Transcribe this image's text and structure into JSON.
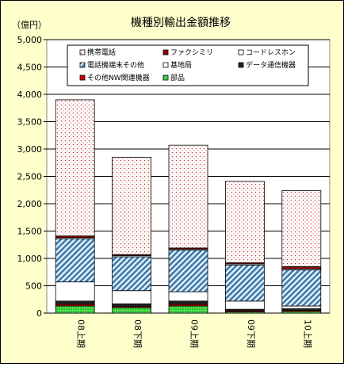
{
  "chart_data": {
    "type": "bar",
    "stacked": true,
    "title": "機種別輸出金額推移",
    "ylabel": "（億円）",
    "xlabel": "",
    "ylim": [
      0,
      5000
    ],
    "yticks": [
      0,
      500,
      1000,
      1500,
      2000,
      2500,
      3000,
      3500,
      4000,
      4500,
      5000
    ],
    "ytick_labels": [
      "0",
      "500",
      "1,000",
      "1,500",
      "2,000",
      "2,500",
      "3,000",
      "3,500",
      "4,000",
      "4,500",
      "5,000"
    ],
    "grid": true,
    "legend_position": "top",
    "categories": [
      "08上期",
      "08下期",
      "09上期",
      "09下期",
      "10上期"
    ],
    "series": [
      {
        "name": "部品",
        "color": "#33cc33",
        "pattern": "green-dots",
        "values": [
          130,
          100,
          130,
          20,
          30
        ]
      },
      {
        "name": "その他NW関連機器",
        "color": "#cc0000",
        "pattern": "solid",
        "values": [
          30,
          20,
          30,
          20,
          20
        ]
      },
      {
        "name": "データ通信機器",
        "color": "#222222",
        "pattern": "solid",
        "values": [
          60,
          50,
          60,
          30,
          30
        ]
      },
      {
        "name": "基地局",
        "color": "#ffffff",
        "pattern": "solid",
        "values": [
          350,
          240,
          170,
          150,
          50
        ]
      },
      {
        "name": "電話機端末その他",
        "color": "#4682b4",
        "pattern": "hatch",
        "values": [
          790,
          620,
          760,
          660,
          660
        ]
      },
      {
        "name": "コードレスホン",
        "color": "#ffffff",
        "pattern": "solid",
        "values": [
          20,
          20,
          20,
          20,
          20
        ]
      },
      {
        "name": "ファクシミリ",
        "color": "#990000",
        "pattern": "solid",
        "values": [
          30,
          20,
          20,
          20,
          40
        ]
      },
      {
        "name": "携帯電話",
        "color": "#ffffff",
        "pattern": "red-dots",
        "values": [
          2490,
          1780,
          1880,
          1490,
          1390
        ]
      }
    ],
    "legend_order": [
      "携帯電話",
      "ファクシミリ",
      "コードレスホン",
      "電話機端末その他",
      "基地局",
      "データ通信機器",
      "その他NW関連機器",
      "部品"
    ]
  }
}
